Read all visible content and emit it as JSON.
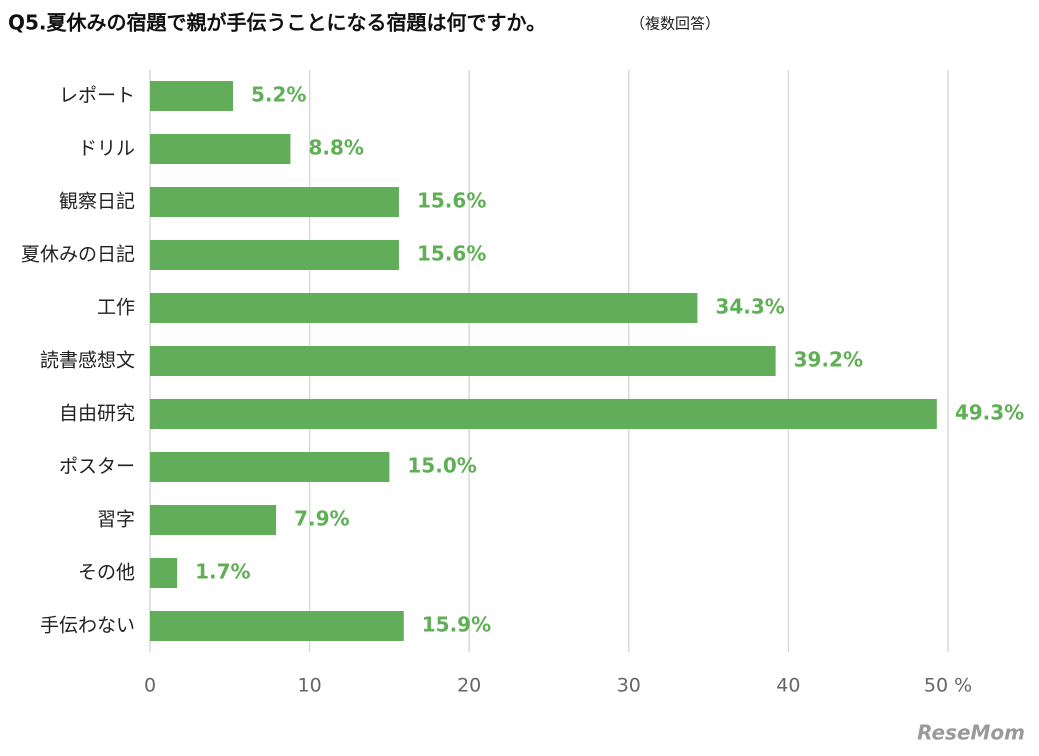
{
  "chart_data": {
    "type": "barh",
    "title": "Q5.夏休みの宿題で親が手伝うことになる宿題は何ですか。",
    "subtitle": "（複数回答）",
    "categories": [
      "レポート",
      "ドリル",
      "観察日記",
      "夏休みの日記",
      "工作",
      "読書感想文",
      "自由研究",
      "ポスター",
      "習字",
      "その他",
      "手伝わない"
    ],
    "values": [
      5.2,
      8.8,
      15.6,
      15.6,
      34.3,
      39.2,
      49.3,
      15.0,
      7.9,
      1.7,
      15.9
    ],
    "value_labels": [
      "5.2%",
      "8.8%",
      "15.6%",
      "15.6%",
      "34.3%",
      "39.2%",
      "49.3%",
      "15.0%",
      "7.9%",
      "1.7%",
      "15.9%"
    ],
    "color": "#62ad59",
    "xlim": [
      0,
      50
    ],
    "xticks": [
      0,
      10,
      20,
      30,
      40,
      {
        "value": 50,
        "label": "50 %"
      }
    ],
    "grid": true,
    "watermark": "ReseMom"
  }
}
